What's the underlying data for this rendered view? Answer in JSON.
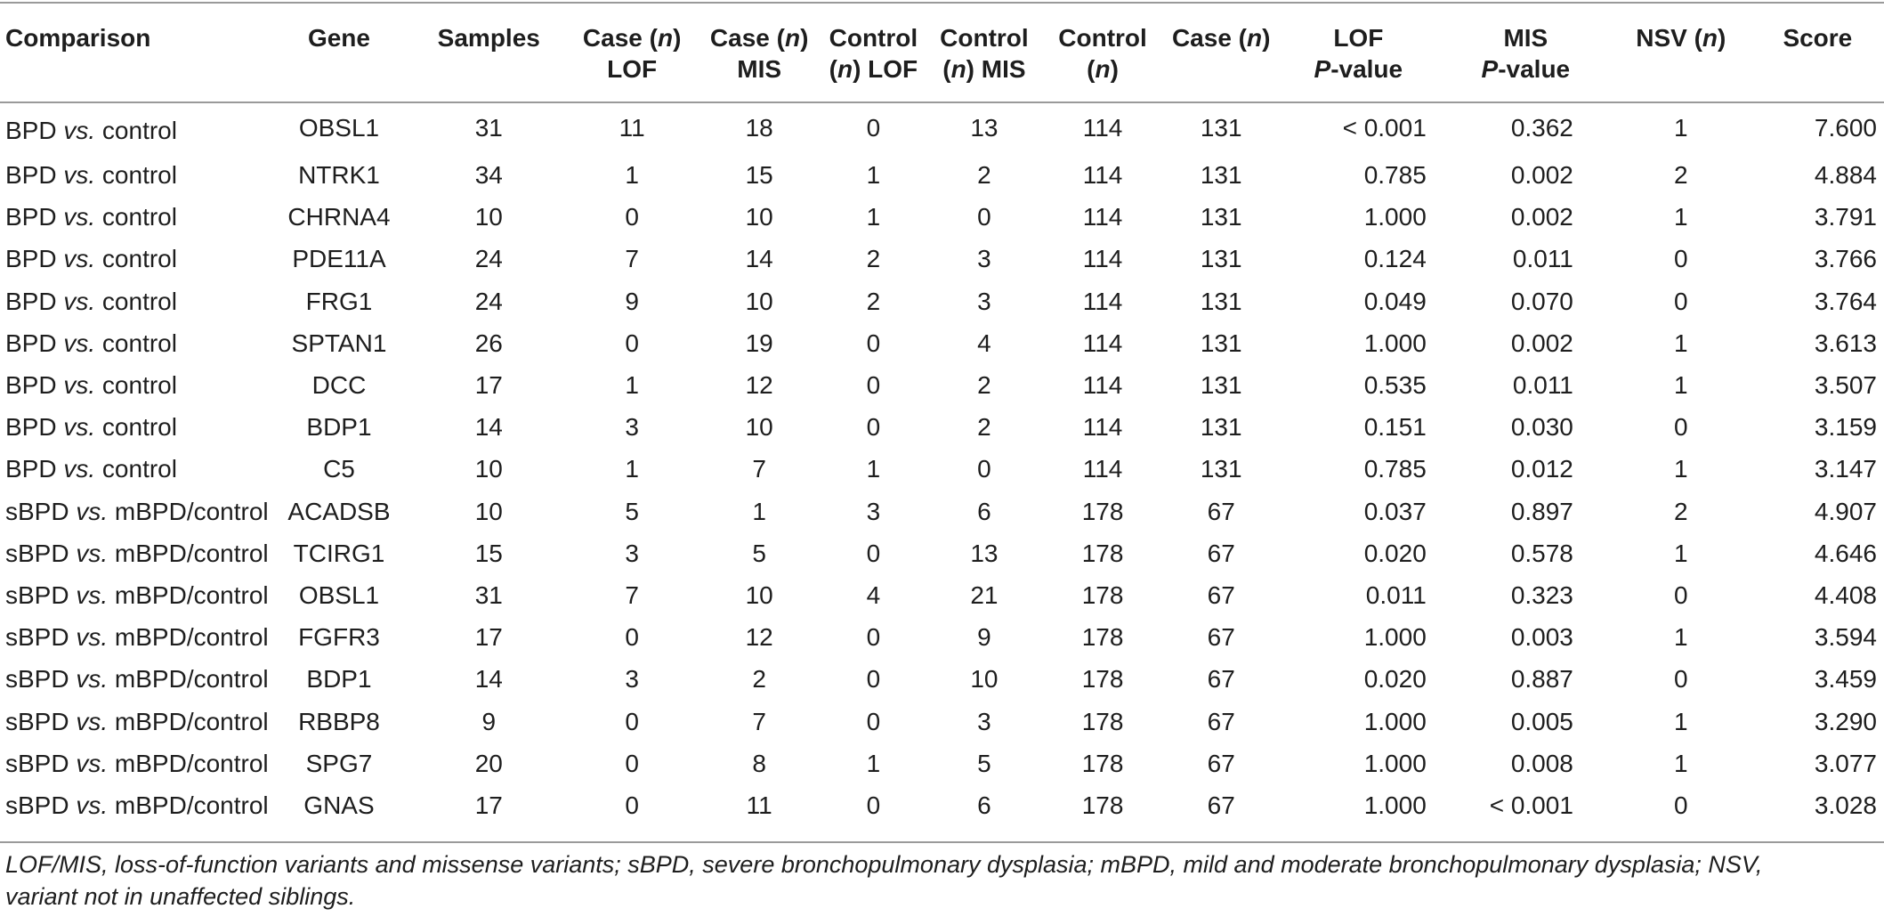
{
  "table": {
    "headers": [
      {
        "lines": [
          "Comparison"
        ]
      },
      {
        "lines": [
          "Gene"
        ]
      },
      {
        "lines": [
          "Samples"
        ]
      },
      {
        "lines": [
          "Case (n)",
          "LOF"
        ]
      },
      {
        "lines": [
          "Case (n)",
          "MIS"
        ]
      },
      {
        "lines": [
          "Control",
          "(n) LOF"
        ]
      },
      {
        "lines": [
          "Control",
          "(n) MIS"
        ]
      },
      {
        "lines": [
          "Control",
          "(n)"
        ]
      },
      {
        "lines": [
          "Case (n)"
        ]
      },
      {
        "lines": [
          "LOF",
          "P-value"
        ]
      },
      {
        "lines": [
          "MIS",
          "P-value"
        ]
      },
      {
        "lines": [
          "NSV (n)"
        ]
      },
      {
        "lines": [
          "Score"
        ]
      }
    ],
    "rows": [
      [
        "BPD",
        "vs.",
        "control",
        "OBSL1",
        "31",
        "11",
        "18",
        "0",
        "13",
        "114",
        "131",
        "< 0.001",
        "0.362",
        "1",
        "7.600"
      ],
      [
        "BPD",
        "vs.",
        "control",
        "NTRK1",
        "34",
        "1",
        "15",
        "1",
        "2",
        "114",
        "131",
        "0.785",
        "0.002",
        "2",
        "4.884"
      ],
      [
        "BPD",
        "vs.",
        "control",
        "CHRNA4",
        "10",
        "0",
        "10",
        "1",
        "0",
        "114",
        "131",
        "1.000",
        "0.002",
        "1",
        "3.791"
      ],
      [
        "BPD",
        "vs.",
        "control",
        "PDE11A",
        "24",
        "7",
        "14",
        "2",
        "3",
        "114",
        "131",
        "0.124",
        "0.011",
        "0",
        "3.766"
      ],
      [
        "BPD",
        "vs.",
        "control",
        "FRG1",
        "24",
        "9",
        "10",
        "2",
        "3",
        "114",
        "131",
        "0.049",
        "0.070",
        "0",
        "3.764"
      ],
      [
        "BPD",
        "vs.",
        "control",
        "SPTAN1",
        "26",
        "0",
        "19",
        "0",
        "4",
        "114",
        "131",
        "1.000",
        "0.002",
        "1",
        "3.613"
      ],
      [
        "BPD",
        "vs.",
        "control",
        "DCC",
        "17",
        "1",
        "12",
        "0",
        "2",
        "114",
        "131",
        "0.535",
        "0.011",
        "1",
        "3.507"
      ],
      [
        "BPD",
        "vs.",
        "control",
        "BDP1",
        "14",
        "3",
        "10",
        "0",
        "2",
        "114",
        "131",
        "0.151",
        "0.030",
        "0",
        "3.159"
      ],
      [
        "BPD",
        "vs.",
        "control",
        "C5",
        "10",
        "1",
        "7",
        "1",
        "0",
        "114",
        "131",
        "0.785",
        "0.012",
        "1",
        "3.147"
      ],
      [
        "sBPD",
        "vs.",
        "mBPD/control",
        "ACADSB",
        "10",
        "5",
        "1",
        "3",
        "6",
        "178",
        "67",
        "0.037",
        "0.897",
        "2",
        "4.907"
      ],
      [
        "sBPD",
        "vs.",
        "mBPD/control",
        "TCIRG1",
        "15",
        "3",
        "5",
        "0",
        "13",
        "178",
        "67",
        "0.020",
        "0.578",
        "1",
        "4.646"
      ],
      [
        "sBPD",
        "vs.",
        "mBPD/control",
        "OBSL1",
        "31",
        "7",
        "10",
        "4",
        "21",
        "178",
        "67",
        "0.011",
        "0.323",
        "0",
        "4.408"
      ],
      [
        "sBPD",
        "vs.",
        "mBPD/control",
        "FGFR3",
        "17",
        "0",
        "12",
        "0",
        "9",
        "178",
        "67",
        "1.000",
        "0.003",
        "1",
        "3.594"
      ],
      [
        "sBPD",
        "vs.",
        "mBPD/control",
        "BDP1",
        "14",
        "3",
        "2",
        "0",
        "10",
        "178",
        "67",
        "0.020",
        "0.887",
        "0",
        "3.459"
      ],
      [
        "sBPD",
        "vs.",
        "mBPD/control",
        "RBBP8",
        "9",
        "0",
        "7",
        "0",
        "3",
        "178",
        "67",
        "1.000",
        "0.005",
        "1",
        "3.290"
      ],
      [
        "sBPD",
        "vs.",
        "mBPD/control",
        "SPG7",
        "20",
        "0",
        "8",
        "1",
        "5",
        "178",
        "67",
        "1.000",
        "0.008",
        "1",
        "3.077"
      ],
      [
        "sBPD",
        "vs.",
        "mBPD/control",
        "GNAS",
        "17",
        "0",
        "11",
        "0",
        "6",
        "178",
        "67",
        "1.000",
        "< 0.001",
        "0",
        "3.028"
      ]
    ]
  },
  "footnote": {
    "line1": "LOF/MIS, loss-of-function variants and missense variants; sBPD, severe bronchopulmonary dysplasia; mBPD, mild and moderate bronchopulmonary dysplasia; NSV,",
    "line2": "variant not in unaffected siblings."
  }
}
